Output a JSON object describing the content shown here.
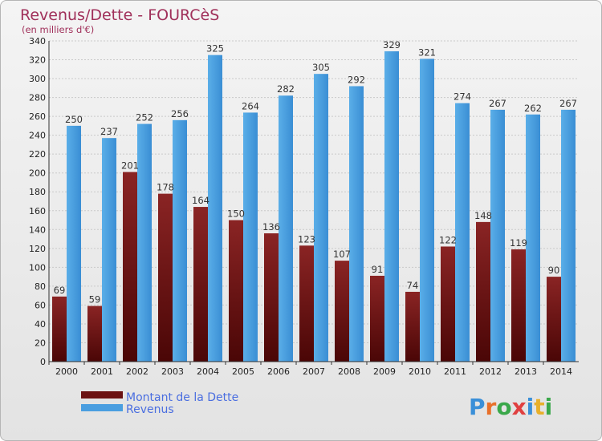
{
  "chart_data": {
    "type": "bar",
    "title": "Revenus/Dette - FOURCèS",
    "subtitle": "(en milliers d'€)",
    "categories": [
      "2000",
      "2001",
      "2002",
      "2003",
      "2004",
      "2005",
      "2006",
      "2007",
      "2008",
      "2009",
      "2010",
      "2011",
      "2012",
      "2013",
      "2014"
    ],
    "series": [
      {
        "name": "Montant de la Dette",
        "color": "#7a1a1a",
        "values": [
          69,
          59,
          201,
          178,
          164,
          150,
          136,
          123,
          107,
          91,
          74,
          122,
          148,
          119,
          90
        ]
      },
      {
        "name": "Revenus",
        "color": "#4a9ee0",
        "values": [
          250,
          237,
          252,
          256,
          325,
          264,
          282,
          305,
          292,
          329,
          321,
          274,
          267,
          262,
          267
        ]
      }
    ],
    "ylim": [
      0,
      340
    ],
    "ytick_step": 20,
    "grid": true,
    "legend": "bottom-left",
    "logo_text": "Proxiti",
    "colors": {
      "title": "#a0305a",
      "legend_text": "#4a6ee0"
    }
  }
}
